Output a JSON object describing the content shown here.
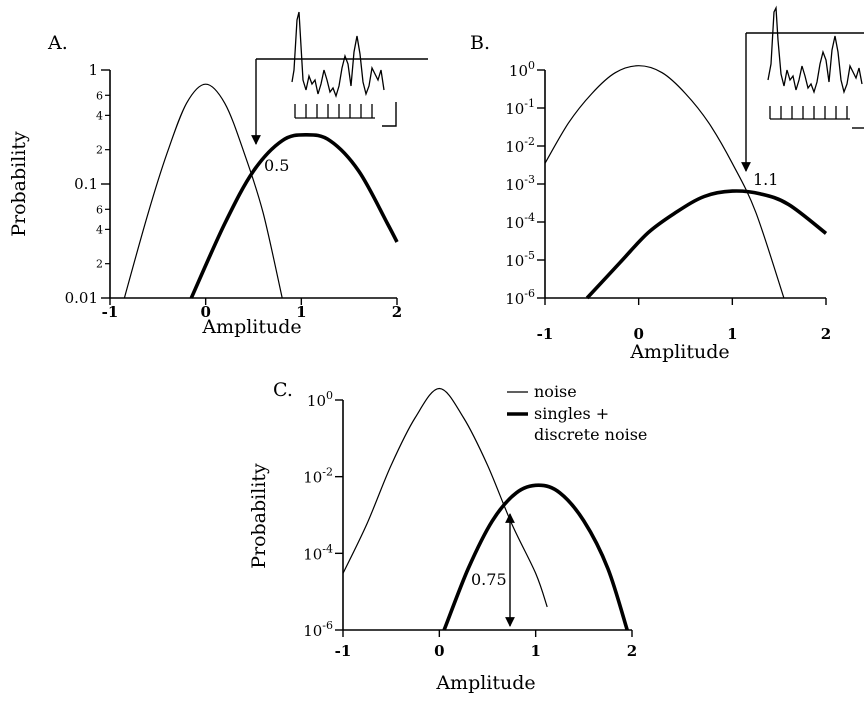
{
  "panels": {
    "A": {
      "label": "A."
    },
    "B": {
      "label": "B."
    },
    "C": {
      "label": "C."
    }
  },
  "legend": {
    "noise_label": "noise",
    "signal_label_line1": "singles +",
    "signal_label_line2": "discrete noise"
  },
  "chart_data": [
    {
      "panel": "A.",
      "type": "line",
      "xlabel": "Amplitude",
      "ylabel": "Probability",
      "yscale": "log",
      "xlim": [
        -1,
        2
      ],
      "ylim": [
        0.01,
        1
      ],
      "x_ticks": [
        -1,
        0,
        1,
        2
      ],
      "x_tick_labels": [
        "-1",
        "0",
        "1",
        "2"
      ],
      "y_major_ticks": [
        1,
        0.1,
        0.01
      ],
      "y_major_labels": [
        "1",
        "0.1",
        "0.01"
      ],
      "y_minor_ticks": [
        0.6,
        0.4,
        0.2,
        0.06,
        0.04,
        0.02
      ],
      "y_minor_labels": [
        "6",
        "4",
        "2",
        "6",
        "4",
        "2"
      ],
      "series": [
        {
          "style": "thin",
          "x": [
            -0.85,
            -0.6,
            -0.4,
            -0.2,
            0,
            0.2,
            0.4,
            0.6,
            0.8
          ],
          "y": [
            0.01,
            0.056,
            0.19,
            0.51,
            0.75,
            0.51,
            0.19,
            0.056,
            0.01
          ]
        },
        {
          "style": "thick",
          "x": [
            -0.15,
            0.2,
            0.5,
            0.8,
            1.05,
            1.3,
            1.6,
            1.9,
            2.0
          ],
          "y": [
            0.01,
            0.045,
            0.13,
            0.24,
            0.27,
            0.24,
            0.13,
            0.045,
            0.031
          ]
        }
      ],
      "annotation": {
        "text": "0.5",
        "x": 0.5,
        "y": 0.16
      },
      "threshold_x": 0.5
    },
    {
      "panel": "B.",
      "type": "line",
      "xlabel": "Amplitude",
      "ylabel": "",
      "yscale": "log",
      "xlim": [
        -1,
        2
      ],
      "ylim": [
        1e-06,
        1
      ],
      "x_ticks": [
        -1,
        0,
        1,
        2
      ],
      "x_tick_labels": [
        "-1",
        "0",
        "1",
        "2"
      ],
      "y_ticks": [
        1,
        0.1,
        0.01,
        0.001,
        0.0001,
        1e-05,
        1e-06
      ],
      "y_tick_bases": [
        "10",
        "10",
        "10",
        "10",
        "10",
        "10",
        "10"
      ],
      "y_tick_exponents": [
        "0",
        "-1",
        "-2",
        "-3",
        "-4",
        "-5",
        "-6"
      ],
      "series": [
        {
          "style": "thin",
          "x": [
            -1.0,
            -0.75,
            -0.5,
            -0.25,
            0,
            0.25,
            0.5,
            0.75,
            1.0,
            1.25,
            1.55
          ],
          "y": [
            0.0035,
            0.04,
            0.24,
            0.85,
            1.3,
            0.85,
            0.24,
            0.04,
            0.0035,
            0.00018,
            1e-06
          ]
        },
        {
          "style": "thick",
          "x": [
            -0.55,
            -0.2,
            0.1,
            0.4,
            0.7,
            1.0,
            1.3,
            1.6,
            2.0
          ],
          "y": [
            1e-06,
            8.5e-06,
            5.2e-05,
            0.00018,
            0.00047,
            0.00065,
            0.00055,
            0.00029,
            5e-05
          ]
        }
      ],
      "annotation": {
        "text": "1.1",
        "x": 1.1,
        "y": 0.0006
      },
      "threshold_x": 1.1
    },
    {
      "panel": "C.",
      "type": "line",
      "xlabel": "Amplitude",
      "ylabel": "Probability",
      "yscale": "log",
      "xlim": [
        -1,
        2
      ],
      "ylim": [
        1e-06,
        1
      ],
      "x_ticks": [
        -1,
        0,
        1,
        2
      ],
      "x_tick_labels": [
        "-1",
        "0",
        "1",
        "2"
      ],
      "y_ticks": [
        1,
        0.01,
        0.0001,
        1e-06
      ],
      "y_tick_bases": [
        "10",
        "10",
        "10",
        "10"
      ],
      "y_tick_exponents": [
        "0",
        "-2",
        "-4",
        "-6"
      ],
      "series": [
        {
          "name": "noise",
          "style": "thin",
          "x": [
            -1.0,
            -0.75,
            -0.5,
            -0.25,
            0,
            0.25,
            0.5,
            0.75,
            1.0,
            1.12
          ],
          "y": [
            3e-05,
            0.0006,
            0.02,
            0.35,
            2.0,
            0.35,
            0.02,
            0.0006,
            3e-05,
            4e-06
          ]
        },
        {
          "name": "singles + discrete noise",
          "style": "thick",
          "x": [
            0.05,
            0.3,
            0.55,
            0.8,
            1.03,
            1.25,
            1.5,
            1.75,
            1.95
          ],
          "y": [
            1e-06,
            4e-05,
            0.0007,
            0.0038,
            0.006,
            0.0038,
            0.0007,
            4e-05,
            1e-06
          ]
        }
      ],
      "annotation": {
        "text": "0.75",
        "x": 0.75
      },
      "threshold_x": 0.75
    }
  ]
}
